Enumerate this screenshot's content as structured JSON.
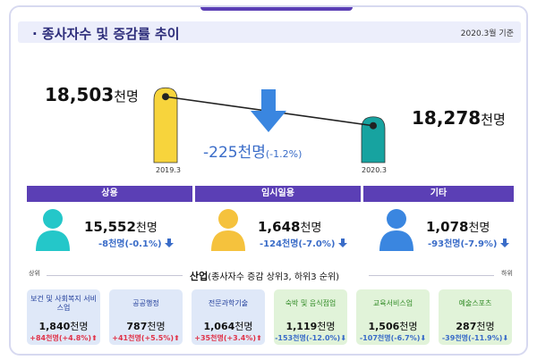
{
  "header": {
    "title": "· 종사자수 및 증감률 추이",
    "basis": "2020.3월 기준"
  },
  "total": {
    "left_value": "18,503",
    "left_unit": "천명",
    "left_period": "2019.3",
    "right_value": "18,278",
    "right_unit": "천명",
    "right_period": "2020.3",
    "delta_value": "-225천명",
    "delta_pct": "(-1.2%)"
  },
  "categories": [
    {
      "name": "상용",
      "value": "15,552",
      "unit": "천명",
      "change": "-8천명(-0.1%)"
    },
    {
      "name": "임시일용",
      "value": "1,648",
      "unit": "천명",
      "change": "-124천명(-7.0%)"
    },
    {
      "name": "기타",
      "value": "1,078",
      "unit": "천명",
      "change": "-93천명(-7.9%)"
    }
  ],
  "industry": {
    "title": "산업",
    "note": "(종사자수 증감 상위3, 하위3 순위)",
    "left_label": "상위",
    "right_label": "하위",
    "items": [
      {
        "name": "보건 및 사회복지 서비스업",
        "value": "1,840",
        "unit": "천명",
        "change": "+84천명(+4.8%)",
        "dir": "up"
      },
      {
        "name": "공공행정",
        "value": "787",
        "unit": "천명",
        "change": "+41천명(+5.5%)",
        "dir": "up"
      },
      {
        "name": "전문과학기술",
        "value": "1,064",
        "unit": "천명",
        "change": "+35천명(+3.4%)",
        "dir": "up"
      },
      {
        "name": "숙박 및 음식점업",
        "value": "1,119",
        "unit": "천명",
        "change": "-153천명(-12.0%)",
        "dir": "down"
      },
      {
        "name": "교육서비스업",
        "value": "1,506",
        "unit": "천명",
        "change": "-107천명(-6.7%)",
        "dir": "down"
      },
      {
        "name": "예술스포츠",
        "value": "287",
        "unit": "천명",
        "change": "-39천명(-11.9%)",
        "dir": "down"
      }
    ]
  },
  "colors": {
    "accent": "#5b3fb5",
    "bar_2019": "#f7d43c",
    "bar_2020": "#17a3a0",
    "person_1": "#24c7c9",
    "person_2": "#f5c23d",
    "person_3": "#3a86e0",
    "up": "#e0344a",
    "down": "#3a6cc8"
  },
  "chart_data": {
    "type": "bar",
    "categories": [
      "2019.3",
      "2020.3"
    ],
    "values": [
      18503,
      18278
    ],
    "title": "종사자수 및 증감률 추이",
    "xlabel": "",
    "ylabel": "",
    "annotation": "-225천명(-1.2%)"
  }
}
